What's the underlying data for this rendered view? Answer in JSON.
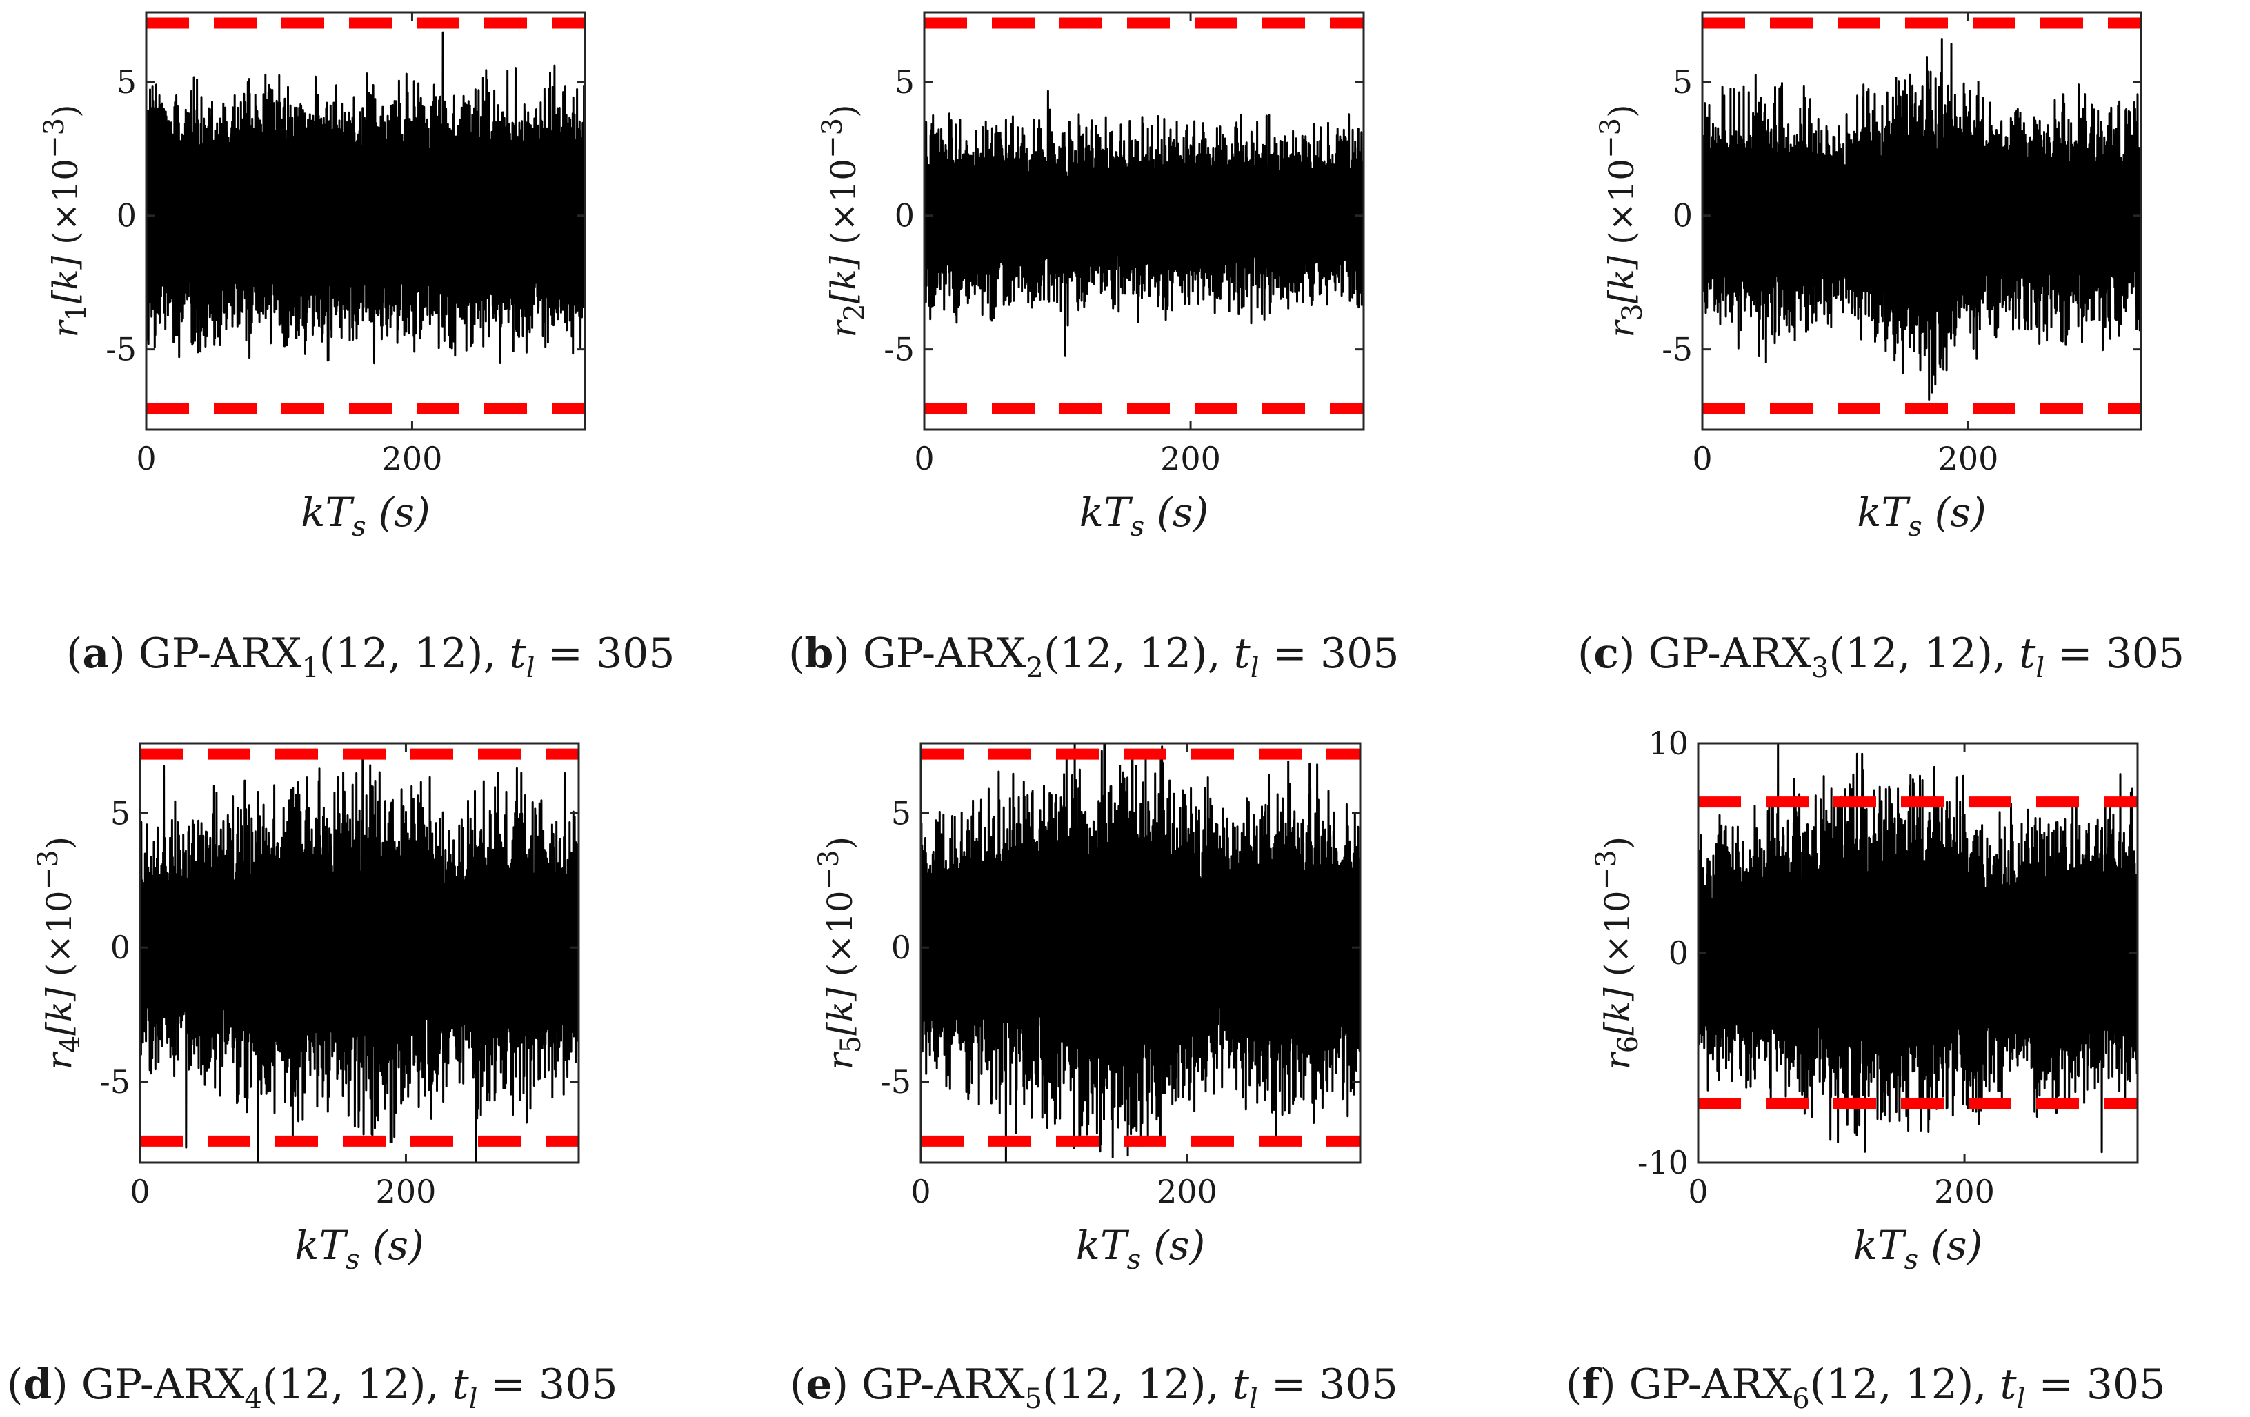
{
  "chart_data": [
    {
      "type": "line",
      "panel": "a",
      "caption": {
        "tag": "a",
        "model": "GP-ARX",
        "index": "1",
        "order": "(12, 12)",
        "threshold_label": "t",
        "threshold_sub": "l",
        "threshold_value": "305"
      },
      "ylabel": {
        "var": "r",
        "index": "1",
        "arg": "[k]",
        "scale": "(×10",
        "exp": "−3",
        "close": ")"
      },
      "xlabel": {
        "main": "kT",
        "sub": "s",
        "unit": "(s)"
      },
      "yticks": [
        -5,
        0,
        5
      ],
      "ytick_labels": [
        "-5",
        "0",
        "5"
      ],
      "xticks": [
        0,
        200
      ],
      "xtick_labels": [
        "0",
        "200"
      ],
      "xlim": [
        0,
        330
      ],
      "ylim": [
        -8,
        7.6
      ],
      "threshold": 7.2,
      "series": [
        {
          "name": "residual",
          "color": "#000000",
          "core": 3.6,
          "spread": 2.0,
          "envelope": [
            [
              0,
              1.0
            ],
            [
              330,
              1.0
            ]
          ]
        },
        {
          "name": "threshold",
          "color": "#ff0000",
          "values": [
            7.2,
            -7.2
          ]
        }
      ]
    },
    {
      "type": "line",
      "panel": "b",
      "caption": {
        "tag": "b",
        "model": "GP-ARX",
        "index": "2",
        "order": "(12, 12)",
        "threshold_label": "t",
        "threshold_sub": "l",
        "threshold_value": "305"
      },
      "ylabel": {
        "var": "r",
        "index": "2",
        "arg": "[k]",
        "scale": "(×10",
        "exp": "−3",
        "close": ")"
      },
      "xlabel": {
        "main": "kT",
        "sub": "s",
        "unit": "(s)"
      },
      "yticks": [
        -5,
        0,
        5
      ],
      "ytick_labels": [
        "-5",
        "0",
        "5"
      ],
      "xticks": [
        0,
        200
      ],
      "xtick_labels": [
        "0",
        "200"
      ],
      "xlim": [
        0,
        330
      ],
      "ylim": [
        -8,
        7.6
      ],
      "threshold": 7.2,
      "series": [
        {
          "name": "residual",
          "color": "#000000",
          "core": 2.2,
          "spread": 1.9,
          "envelope": [
            [
              0,
              1.0
            ],
            [
              330,
              1.0
            ]
          ]
        },
        {
          "name": "threshold",
          "color": "#ff0000",
          "values": [
            7.2,
            -7.2
          ]
        }
      ]
    },
    {
      "type": "line",
      "panel": "c",
      "caption": {
        "tag": "c",
        "model": "GP-ARX",
        "index": "3",
        "order": "(12, 12)",
        "threshold_label": "t",
        "threshold_sub": "l",
        "threshold_value": "305"
      },
      "ylabel": {
        "var": "r",
        "index": "3",
        "arg": "[k]",
        "scale": "(×10",
        "exp": "−3",
        "close": ")"
      },
      "xlabel": {
        "main": "kT",
        "sub": "s",
        "unit": "(s)"
      },
      "yticks": [
        -5,
        0,
        5
      ],
      "ytick_labels": [
        "-5",
        "0",
        "5"
      ],
      "xticks": [
        0,
        200
      ],
      "xtick_labels": [
        "0",
        "200"
      ],
      "xlim": [
        0,
        330
      ],
      "ylim": [
        -8,
        7.6
      ],
      "threshold": 7.2,
      "series": [
        {
          "name": "residual",
          "color": "#000000",
          "core": 2.7,
          "spread": 2.2,
          "envelope": [
            [
              0,
              1.0
            ],
            [
              50,
              1.15
            ],
            [
              100,
              0.9
            ],
            [
              170,
              1.45
            ],
            [
              190,
              1.35
            ],
            [
              230,
              0.95
            ],
            [
              260,
              1.1
            ],
            [
              330,
              1.0
            ]
          ]
        },
        {
          "name": "threshold",
          "color": "#ff0000",
          "values": [
            7.2,
            -7.2
          ]
        }
      ]
    },
    {
      "type": "line",
      "panel": "d",
      "caption": {
        "tag": "d",
        "model": "GP-ARX",
        "index": "4",
        "order": "(12, 12)",
        "threshold_label": "t",
        "threshold_sub": "l",
        "threshold_value": "305"
      },
      "ylabel": {
        "var": "r",
        "index": "4",
        "arg": "[k]",
        "scale": "(×10",
        "exp": "−3",
        "close": ")"
      },
      "xlabel": {
        "main": "kT",
        "sub": "s",
        "unit": "(s)"
      },
      "yticks": [
        -5,
        0,
        5
      ],
      "ytick_labels": [
        "-5",
        "0",
        "5"
      ],
      "xticks": [
        0,
        200
      ],
      "xtick_labels": [
        "0",
        "200"
      ],
      "xlim": [
        0,
        330
      ],
      "ylim": [
        -8,
        7.6
      ],
      "threshold": 7.2,
      "series": [
        {
          "name": "residual",
          "color": "#000000",
          "core": 3.0,
          "spread": 2.6,
          "envelope": [
            [
              0,
              0.9
            ],
            [
              60,
              1.15
            ],
            [
              110,
              1.3
            ],
            [
              150,
              1.25
            ],
            [
              180,
              1.45
            ],
            [
              240,
              1.05
            ],
            [
              260,
              1.3
            ],
            [
              300,
              1.2
            ],
            [
              330,
              1.0
            ]
          ]
        },
        {
          "name": "threshold",
          "color": "#ff0000",
          "values": [
            7.2,
            -7.2
          ]
        }
      ]
    },
    {
      "type": "line",
      "panel": "e",
      "caption": {
        "tag": "e",
        "model": "GP-ARX",
        "index": "5",
        "order": "(12, 12)",
        "threshold_label": "t",
        "threshold_sub": "l",
        "threshold_value": "305"
      },
      "ylabel": {
        "var": "r",
        "index": "5",
        "arg": "[k]",
        "scale": "(×10",
        "exp": "−3",
        "close": ")"
      },
      "xlabel": {
        "main": "kT",
        "sub": "s",
        "unit": "(s)"
      },
      "yticks": [
        -5,
        0,
        5
      ],
      "ytick_labels": [
        "-5",
        "0",
        "5"
      ],
      "xticks": [
        0,
        200
      ],
      "xtick_labels": [
        "0",
        "200"
      ],
      "xlim": [
        0,
        330
      ],
      "ylim": [
        -8,
        7.6
      ],
      "threshold": 7.2,
      "series": [
        {
          "name": "residual",
          "color": "#000000",
          "core": 3.2,
          "spread": 2.6,
          "envelope": [
            [
              0,
              0.95
            ],
            [
              60,
              1.2
            ],
            [
              110,
              1.35
            ],
            [
              140,
              1.45
            ],
            [
              180,
              1.4
            ],
            [
              230,
              1.0
            ],
            [
              260,
              1.3
            ],
            [
              300,
              1.25
            ],
            [
              330,
              1.05
            ]
          ]
        },
        {
          "name": "threshold",
          "color": "#ff0000",
          "values": [
            7.2,
            -7.2
          ]
        }
      ]
    },
    {
      "type": "line",
      "panel": "f",
      "caption": {
        "tag": "f",
        "model": "GP-ARX",
        "index": "6",
        "order": "(12, 12)",
        "threshold_label": "t",
        "threshold_sub": "l",
        "threshold_value": "305"
      },
      "ylabel": {
        "var": "r",
        "index": "6",
        "arg": "[k]",
        "scale": "(×10",
        "exp": "−3",
        "close": ")"
      },
      "xlabel": {
        "main": "kT",
        "sub": "s",
        "unit": "(s)"
      },
      "yticks": [
        -10,
        0,
        10
      ],
      "ytick_labels": [
        "-10",
        "0",
        "10"
      ],
      "xticks": [
        0,
        200
      ],
      "xtick_labels": [
        "0",
        "200"
      ],
      "xlim": [
        0,
        330
      ],
      "ylim": [
        -10,
        10
      ],
      "threshold": 7.2,
      "series": [
        {
          "name": "residual",
          "color": "#000000",
          "core": 4.2,
          "spread": 3.4,
          "envelope": [
            [
              0,
              0.9
            ],
            [
              50,
              1.05
            ],
            [
              100,
              1.25
            ],
            [
              140,
              1.4
            ],
            [
              180,
              1.3
            ],
            [
              230,
              0.95
            ],
            [
              260,
              1.15
            ],
            [
              330,
              1.05
            ]
          ]
        },
        {
          "name": "threshold",
          "color": "#ff0000",
          "values": [
            7.2,
            -7.2
          ]
        }
      ]
    }
  ]
}
